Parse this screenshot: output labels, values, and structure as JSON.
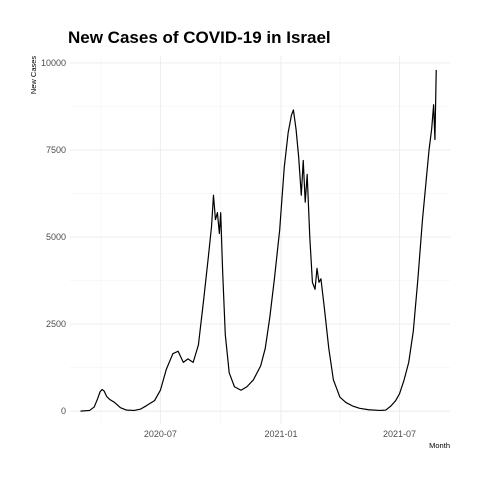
{
  "chart_data": {
    "type": "line",
    "title": "New Cases of COVID-19 in Israel",
    "xlabel": "Month",
    "ylabel": "New Cases",
    "xlim": [
      "2020-02-14",
      "2021-09-16"
    ],
    "ylim": [
      -370,
      10200
    ],
    "x_ticks": [
      {
        "date": "2020-07-01",
        "label": "2020-07"
      },
      {
        "date": "2021-01-01",
        "label": "2021-01"
      },
      {
        "date": "2021-07-01",
        "label": "2021-07"
      }
    ],
    "x_minor_ticks": [
      "2020-04-01",
      "2020-10-01",
      "2021-04-01"
    ],
    "y_ticks": [
      0,
      2500,
      5000,
      7500,
      10000
    ],
    "grid": true,
    "series": [
      {
        "color": "#000000",
        "points": [
          [
            "2020-03-01",
            0
          ],
          [
            "2020-03-15",
            20
          ],
          [
            "2020-03-22",
            120
          ],
          [
            "2020-03-27",
            350
          ],
          [
            "2020-03-31",
            560
          ],
          [
            "2020-04-03",
            620
          ],
          [
            "2020-04-06",
            580
          ],
          [
            "2020-04-10",
            420
          ],
          [
            "2020-04-15",
            330
          ],
          [
            "2020-04-22",
            250
          ],
          [
            "2020-05-01",
            100
          ],
          [
            "2020-05-10",
            30
          ],
          [
            "2020-05-22",
            20
          ],
          [
            "2020-06-01",
            60
          ],
          [
            "2020-06-10",
            160
          ],
          [
            "2020-06-22",
            300
          ],
          [
            "2020-07-01",
            600
          ],
          [
            "2020-07-10",
            1200
          ],
          [
            "2020-07-20",
            1650
          ],
          [
            "2020-07-28",
            1720
          ],
          [
            "2020-08-05",
            1400
          ],
          [
            "2020-08-12",
            1500
          ],
          [
            "2020-08-20",
            1400
          ],
          [
            "2020-08-28",
            1900
          ],
          [
            "2020-09-05",
            3200
          ],
          [
            "2020-09-12",
            4400
          ],
          [
            "2020-09-17",
            5300
          ],
          [
            "2020-09-20",
            6200
          ],
          [
            "2020-09-23",
            5500
          ],
          [
            "2020-09-26",
            5700
          ],
          [
            "2020-09-29",
            5100
          ],
          [
            "2020-10-01",
            5700
          ],
          [
            "2020-10-04",
            4000
          ],
          [
            "2020-10-08",
            2200
          ],
          [
            "2020-10-14",
            1100
          ],
          [
            "2020-10-22",
            700
          ],
          [
            "2020-11-01",
            600
          ],
          [
            "2020-11-10",
            700
          ],
          [
            "2020-11-20",
            900
          ],
          [
            "2020-12-01",
            1300
          ],
          [
            "2020-12-08",
            1800
          ],
          [
            "2020-12-15",
            2700
          ],
          [
            "2020-12-22",
            3800
          ],
          [
            "2020-12-30",
            5200
          ],
          [
            "2021-01-06",
            7000
          ],
          [
            "2021-01-12",
            8000
          ],
          [
            "2021-01-17",
            8500
          ],
          [
            "2021-01-20",
            8650
          ],
          [
            "2021-01-24",
            8100
          ],
          [
            "2021-01-28",
            7300
          ],
          [
            "2021-02-01",
            6200
          ],
          [
            "2021-02-04",
            7200
          ],
          [
            "2021-02-07",
            6000
          ],
          [
            "2021-02-10",
            6800
          ],
          [
            "2021-02-14",
            5000
          ],
          [
            "2021-02-18",
            3700
          ],
          [
            "2021-02-22",
            3500
          ],
          [
            "2021-02-25",
            4100
          ],
          [
            "2021-02-28",
            3700
          ],
          [
            "2021-03-03",
            3800
          ],
          [
            "2021-03-08",
            3000
          ],
          [
            "2021-03-15",
            1800
          ],
          [
            "2021-03-22",
            900
          ],
          [
            "2021-04-01",
            400
          ],
          [
            "2021-04-10",
            250
          ],
          [
            "2021-04-20",
            150
          ],
          [
            "2021-05-01",
            80
          ],
          [
            "2021-05-15",
            40
          ],
          [
            "2021-06-01",
            20
          ],
          [
            "2021-06-10",
            30
          ],
          [
            "2021-06-18",
            150
          ],
          [
            "2021-06-25",
            300
          ],
          [
            "2021-07-01",
            500
          ],
          [
            "2021-07-08",
            900
          ],
          [
            "2021-07-15",
            1400
          ],
          [
            "2021-07-22",
            2300
          ],
          [
            "2021-07-29",
            3800
          ],
          [
            "2021-08-05",
            5500
          ],
          [
            "2021-08-10",
            6500
          ],
          [
            "2021-08-15",
            7500
          ],
          [
            "2021-08-19",
            8100
          ],
          [
            "2021-08-22",
            8800
          ],
          [
            "2021-08-24",
            7800
          ],
          [
            "2021-08-26",
            9800
          ]
        ]
      }
    ]
  }
}
